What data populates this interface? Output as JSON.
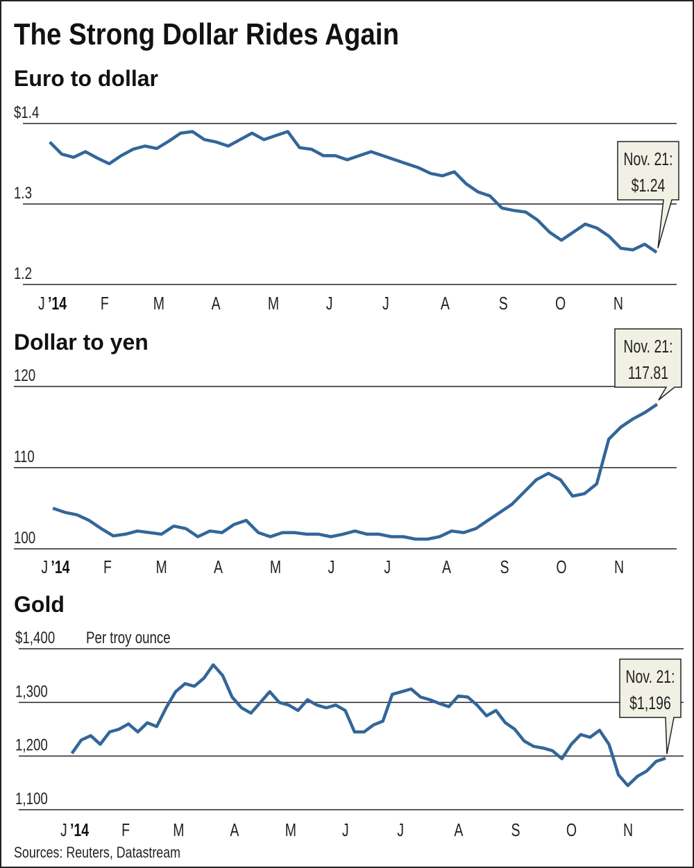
{
  "title": "The Strong Dollar Rides Again",
  "source": "Sources: Reuters, Datastream",
  "colors": {
    "line": "#336699",
    "grid": "#222222",
    "callout_fill": "#f0f0e4"
  },
  "chart_data": [
    {
      "type": "line",
      "title": "Euro to dollar",
      "subtitle": "",
      "x_start": "2014-01-02",
      "x_end": "2014-11-21",
      "x_tick_labels": [
        "J",
        "’14",
        "F",
        "M",
        "A",
        "M",
        "J",
        "J",
        "A",
        "S",
        "O",
        "N"
      ],
      "y_ticks": [
        1.2,
        1.3,
        1.4
      ],
      "y_tick_labels": [
        "1.2",
        "1.3",
        "$1.4"
      ],
      "ylim": [
        1.2,
        1.4
      ],
      "values": [
        1.377,
        1.362,
        1.358,
        1.365,
        1.357,
        1.35,
        1.36,
        1.368,
        1.372,
        1.369,
        1.378,
        1.388,
        1.39,
        1.38,
        1.377,
        1.372,
        1.38,
        1.388,
        1.38,
        1.385,
        1.39,
        1.37,
        1.368,
        1.36,
        1.36,
        1.355,
        1.36,
        1.365,
        1.36,
        1.355,
        1.35,
        1.345,
        1.338,
        1.335,
        1.34,
        1.325,
        1.315,
        1.31,
        1.295,
        1.292,
        1.29,
        1.28,
        1.265,
        1.255,
        1.265,
        1.275,
        1.27,
        1.26,
        1.245,
        1.243,
        1.25,
        1.24
      ],
      "callout": {
        "line1": "Nov. 21:",
        "line2": "$1.24"
      }
    },
    {
      "type": "line",
      "title": "Dollar to yen",
      "subtitle": "",
      "x_start": "2014-01-02",
      "x_end": "2014-11-21",
      "x_tick_labels": [
        "J",
        "’14",
        "F",
        "M",
        "A",
        "M",
        "J",
        "J",
        "A",
        "S",
        "O",
        "N"
      ],
      "y_ticks": [
        100,
        110,
        120
      ],
      "y_tick_labels": [
        "100",
        "110",
        "120"
      ],
      "ylim": [
        100,
        120
      ],
      "values": [
        105,
        104.5,
        104.2,
        103.5,
        102.5,
        101.6,
        101.8,
        102.2,
        102,
        101.8,
        102.8,
        102.5,
        101.5,
        102.2,
        102,
        103,
        103.5,
        102,
        101.5,
        102,
        102,
        101.8,
        101.8,
        101.5,
        101.8,
        102.2,
        101.8,
        101.8,
        101.5,
        101.5,
        101.2,
        101.2,
        101.5,
        102.2,
        102,
        102.5,
        103.5,
        104.5,
        105.5,
        107,
        108.5,
        109.3,
        108.5,
        106.5,
        106.8,
        108,
        113.5,
        115,
        116,
        116.8,
        117.81
      ],
      "callout": {
        "line1": "Nov. 21:",
        "line2": "117.81"
      }
    },
    {
      "type": "line",
      "title": "Gold",
      "subtitle": "Per troy ounce",
      "x_start": "2014-01-02",
      "x_end": "2014-11-21",
      "x_tick_labels": [
        "J",
        "’14",
        "F",
        "M",
        "A",
        "M",
        "J",
        "J",
        "A",
        "S",
        "O",
        "N"
      ],
      "y_ticks": [
        1100,
        1200,
        1300,
        1400
      ],
      "y_tick_labels": [
        "1,100",
        "1,200",
        "1,300",
        "$1,400"
      ],
      "ylim": [
        1100,
        1400
      ],
      "values": [
        1205,
        1230,
        1238,
        1222,
        1245,
        1250,
        1260,
        1245,
        1262,
        1255,
        1290,
        1320,
        1335,
        1330,
        1345,
        1370,
        1350,
        1310,
        1290,
        1280,
        1300,
        1320,
        1300,
        1295,
        1285,
        1305,
        1295,
        1290,
        1295,
        1285,
        1245,
        1245,
        1258,
        1265,
        1315,
        1320,
        1325,
        1310,
        1305,
        1298,
        1292,
        1312,
        1310,
        1295,
        1275,
        1285,
        1262,
        1250,
        1228,
        1218,
        1215,
        1210,
        1195,
        1222,
        1240,
        1235,
        1248,
        1222,
        1165,
        1145,
        1162,
        1172,
        1190,
        1196
      ],
      "callout": {
        "line1": "Nov. 21:",
        "line2": "$1,196"
      }
    }
  ]
}
